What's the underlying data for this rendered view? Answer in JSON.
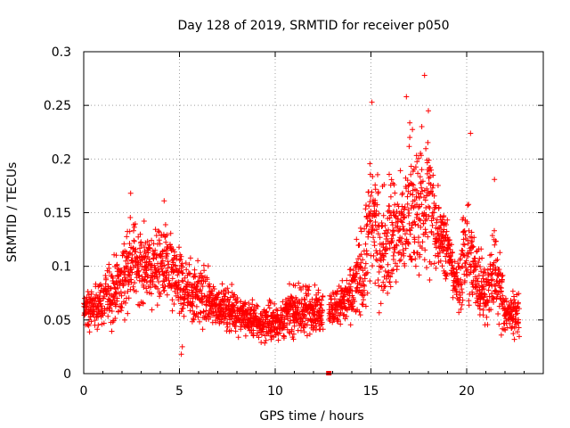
{
  "chart_data": {
    "type": "scatter",
    "title": "Day 128 of 2019, SRMTID for receiver p050",
    "xlabel": "GPS time / hours",
    "ylabel": "SRMTID / TECUs",
    "xlim": [
      0,
      24
    ],
    "ylim": [
      0,
      0.3
    ],
    "x_ticks": [
      0,
      5,
      10,
      15,
      20
    ],
    "x_tick_labels": [
      "0",
      "5",
      "10",
      "15",
      "20"
    ],
    "y_ticks": [
      0,
      0.05,
      0.1,
      0.15,
      0.2,
      0.25,
      0.3
    ],
    "y_tick_labels": [
      "0",
      "0.05",
      "0.1",
      "0.15",
      "0.2",
      "0.25",
      "0.3"
    ],
    "grid": true,
    "marker": "plus",
    "color": "#ff0000",
    "series": [
      {
        "name": "SRMTID",
        "profile": [
          {
            "t": 0.0,
            "lo": 0.03,
            "hi": 0.085
          },
          {
            "t": 1.0,
            "lo": 0.035,
            "hi": 0.1
          },
          {
            "t": 2.0,
            "lo": 0.04,
            "hi": 0.135
          },
          {
            "t": 2.5,
            "lo": 0.05,
            "hi": 0.16
          },
          {
            "t": 3.5,
            "lo": 0.05,
            "hi": 0.145
          },
          {
            "t": 4.3,
            "lo": 0.05,
            "hi": 0.155
          },
          {
            "t": 5.0,
            "lo": 0.03,
            "hi": 0.125
          },
          {
            "t": 6.0,
            "lo": 0.035,
            "hi": 0.12
          },
          {
            "t": 7.0,
            "lo": 0.035,
            "hi": 0.09
          },
          {
            "t": 8.0,
            "lo": 0.03,
            "hi": 0.085
          },
          {
            "t": 9.0,
            "lo": 0.025,
            "hi": 0.07
          },
          {
            "t": 10.0,
            "lo": 0.02,
            "hi": 0.075
          },
          {
            "t": 11.0,
            "lo": 0.025,
            "hi": 0.09
          },
          {
            "t": 12.0,
            "lo": 0.03,
            "hi": 0.09
          },
          {
            "t": 13.0,
            "lo": 0.035,
            "hi": 0.085
          },
          {
            "t": 14.0,
            "lo": 0.035,
            "hi": 0.11
          },
          {
            "t": 14.7,
            "lo": 0.04,
            "hi": 0.17
          },
          {
            "t": 15.0,
            "lo": 0.05,
            "hi": 0.25
          },
          {
            "t": 15.5,
            "lo": 0.05,
            "hi": 0.18
          },
          {
            "t": 16.0,
            "lo": 0.05,
            "hi": 0.21
          },
          {
            "t": 16.5,
            "lo": 0.055,
            "hi": 0.2
          },
          {
            "t": 17.0,
            "lo": 0.05,
            "hi": 0.26
          },
          {
            "t": 17.5,
            "lo": 0.06,
            "hi": 0.24
          },
          {
            "t": 18.0,
            "lo": 0.06,
            "hi": 0.27
          },
          {
            "t": 18.5,
            "lo": 0.07,
            "hi": 0.2
          },
          {
            "t": 19.0,
            "lo": 0.08,
            "hi": 0.15
          },
          {
            "t": 19.5,
            "lo": 0.05,
            "hi": 0.11
          },
          {
            "t": 20.0,
            "lo": 0.04,
            "hi": 0.2
          },
          {
            "t": 20.5,
            "lo": 0.035,
            "hi": 0.14
          },
          {
            "t": 21.0,
            "lo": 0.03,
            "hi": 0.12
          },
          {
            "t": 21.5,
            "lo": 0.03,
            "hi": 0.17
          },
          {
            "t": 22.0,
            "lo": 0.025,
            "hi": 0.09
          },
          {
            "t": 22.75,
            "lo": 0.03,
            "hi": 0.08
          }
        ],
        "gap": [
          12.5,
          12.8
        ],
        "outliers": [
          {
            "x": 12.8,
            "y": 0.0
          },
          {
            "x": 17.8,
            "y": 0.278
          },
          {
            "x": 15.05,
            "y": 0.253
          },
          {
            "x": 16.85,
            "y": 0.258
          },
          {
            "x": 18.0,
            "y": 0.245
          },
          {
            "x": 20.2,
            "y": 0.224
          },
          {
            "x": 2.45,
            "y": 0.168
          },
          {
            "x": 4.2,
            "y": 0.161
          },
          {
            "x": 21.45,
            "y": 0.181
          },
          {
            "x": 5.1,
            "y": 0.018
          },
          {
            "x": 5.15,
            "y": 0.025
          }
        ]
      }
    ]
  }
}
